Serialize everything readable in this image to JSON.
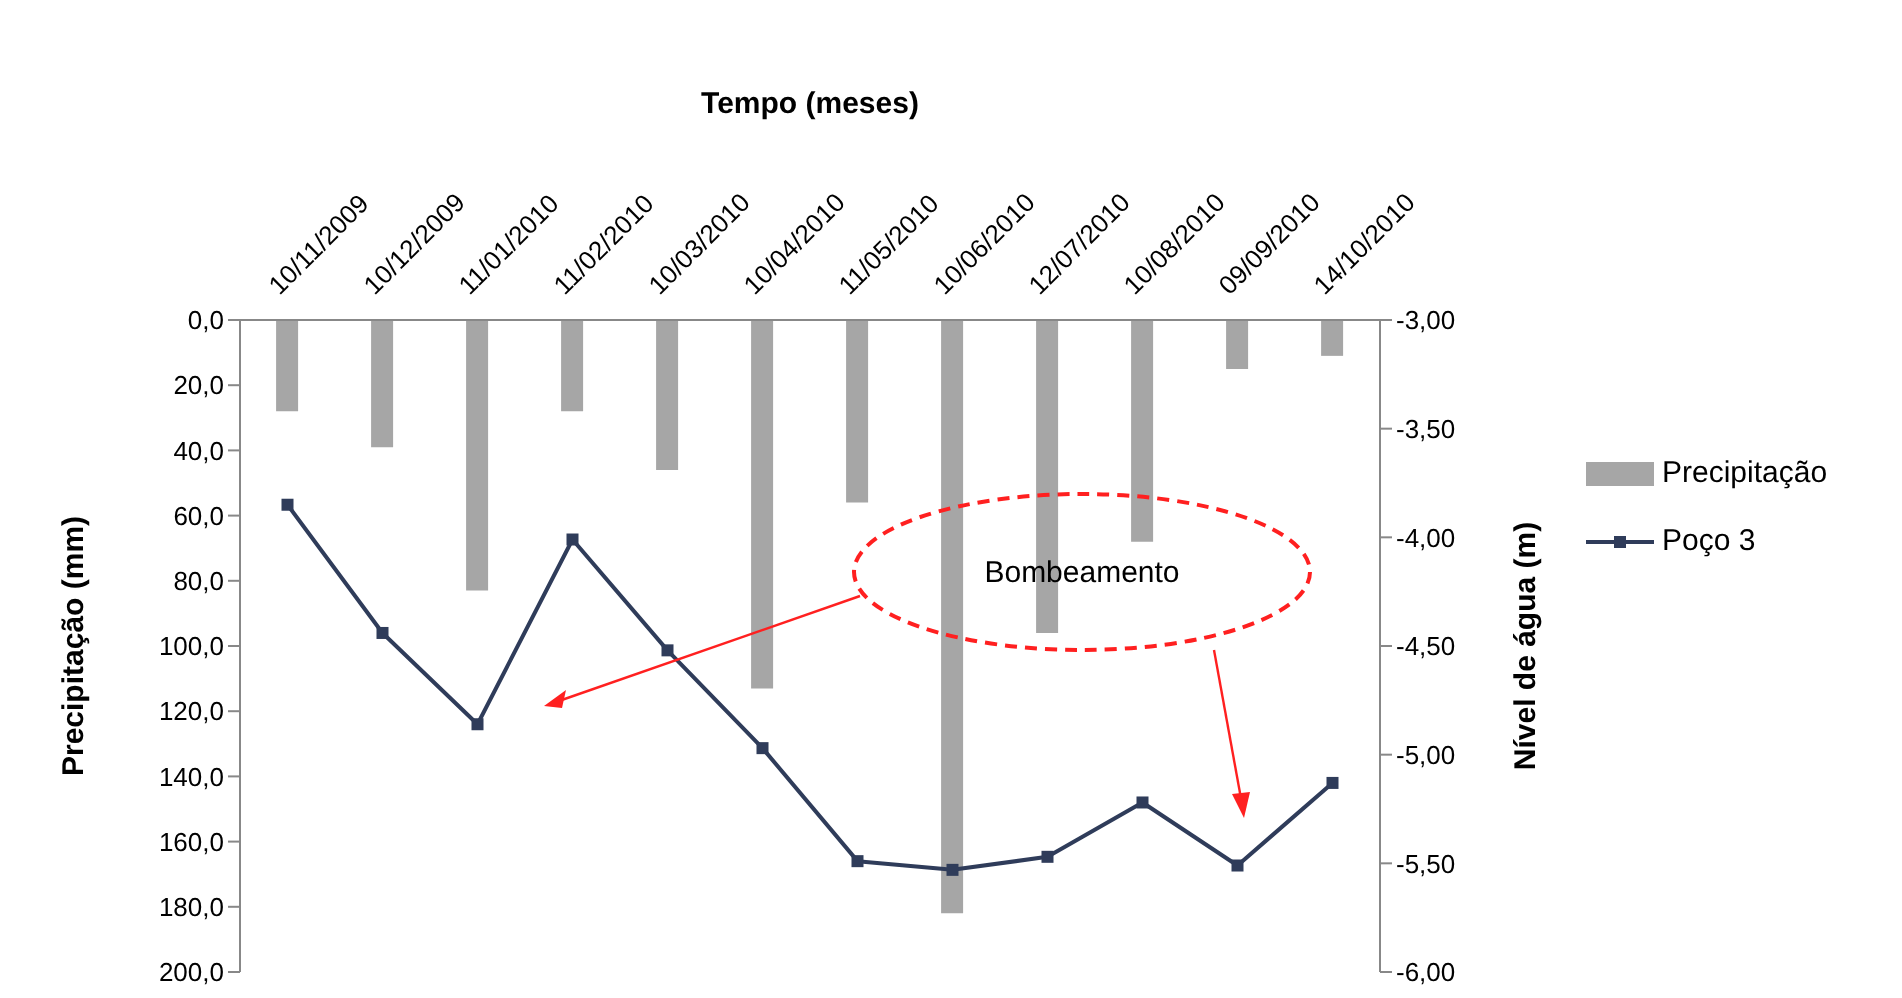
{
  "chart_data": {
    "type": "bar",
    "xlabel": "Tempo (meses)",
    "ylabel": "Precipitação (mm)",
    "y2label": "Nível de água (m)",
    "categories": [
      "10/11/2009",
      "10/12/2009",
      "11/01/2010",
      "11/02/2010",
      "10/03/2010",
      "10/04/2010",
      "11/05/2010",
      "10/06/2010",
      "12/07/2010",
      "10/08/2010",
      "09/09/2010",
      "14/10/2010"
    ],
    "series": [
      {
        "name": "Precipitação",
        "color": "#a6a6a6",
        "values": [
          28,
          39,
          83,
          28,
          46,
          113,
          56,
          182,
          96,
          68,
          15,
          11
        ]
      },
      {
        "name": "Poço 3",
        "type": "line",
        "axis": "y2",
        "color": "#2f3c5a",
        "marker": "square",
        "values": [
          -3.85,
          -4.44,
          -4.86,
          -4.01,
          -4.52,
          -4.97,
          -5.49,
          -5.53,
          -5.47,
          -5.22,
          -5.51,
          -5.13
        ]
      }
    ],
    "ylim": [
      200,
      0
    ],
    "yticks": [
      {
        "value": 0,
        "label": "0,0"
      },
      {
        "value": 20,
        "label": "20,0"
      },
      {
        "value": 40,
        "label": "40,0"
      },
      {
        "value": 60,
        "label": "60,0"
      },
      {
        "value": 80,
        "label": "80,0"
      },
      {
        "value": 100,
        "label": "100,0"
      },
      {
        "value": 120,
        "label": "120,0"
      },
      {
        "value": 140,
        "label": "140,0"
      },
      {
        "value": 160,
        "label": "160,0"
      },
      {
        "value": 180,
        "label": "180,0"
      },
      {
        "value": 200,
        "label": "200,0"
      }
    ],
    "y2lim": [
      -6,
      -3
    ],
    "y2ticks": [
      {
        "value": -3,
        "label": "-3,00"
      },
      {
        "value": -3.5,
        "label": "-3,50"
      },
      {
        "value": -4,
        "label": "-4,00"
      },
      {
        "value": -4.5,
        "label": "-4,50"
      },
      {
        "value": -5,
        "label": "-5,00"
      },
      {
        "value": -5.5,
        "label": "-5,50"
      },
      {
        "value": -6,
        "label": "-6,00"
      }
    ],
    "annotations": [
      "Bombeamento"
    ],
    "legend": "right",
    "grid": false
  }
}
